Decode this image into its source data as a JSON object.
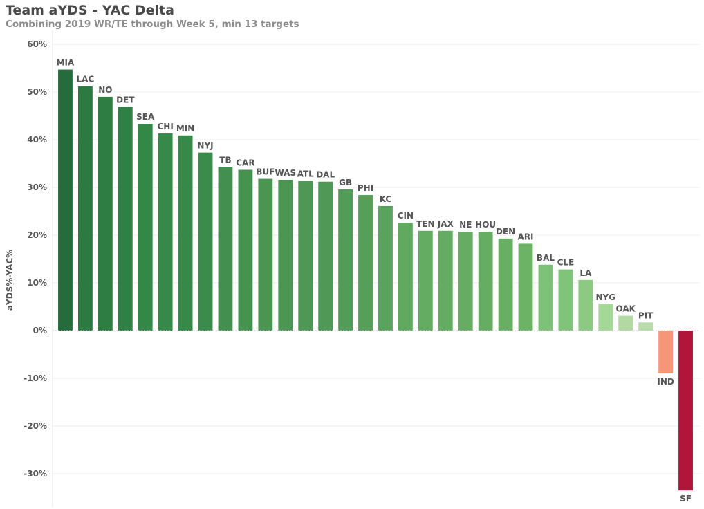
{
  "title": "Team aYDS - YAC Delta",
  "subtitle": "Combining 2019 WR/TE through Week 5, min 13 targets",
  "chart_data": {
    "type": "bar",
    "ylabel": "aYDS%-YAC%",
    "ylim": [
      -37,
      62
    ],
    "yticks": [
      60,
      50,
      40,
      30,
      20,
      10,
      0,
      -10,
      -20,
      -30
    ],
    "ytick_labels": [
      "60%",
      "50%",
      "40%",
      "30%",
      "20%",
      "10%",
      "0%",
      "-10%",
      "-20%",
      "-30%"
    ],
    "grid": true,
    "categories": [
      "MIA",
      "LAC",
      "NO",
      "DET",
      "SEA",
      "CHI",
      "MIN",
      "NYJ",
      "TB",
      "CAR",
      "BUF",
      "WAS",
      "ATL",
      "DAL",
      "GB",
      "PHI",
      "KC",
      "CIN",
      "TEN",
      "JAX",
      "NE",
      "HOU",
      "DEN",
      "ARI",
      "BAL",
      "CLE",
      "LA",
      "NYG",
      "OAK",
      "PIT",
      "IND",
      "SF"
    ],
    "values": [
      54.7,
      51.2,
      49.0,
      46.9,
      43.3,
      41.3,
      40.9,
      37.3,
      34.3,
      33.7,
      31.8,
      31.6,
      31.4,
      31.2,
      29.6,
      28.4,
      26.1,
      22.6,
      20.9,
      20.9,
      20.7,
      20.7,
      19.3,
      18.2,
      13.8,
      12.8,
      10.6,
      5.5,
      3.1,
      1.7,
      -9.0,
      -33.5
    ],
    "colors": [
      "#256b3c",
      "#2b7a40",
      "#2e7e42",
      "#2f8044",
      "#348847",
      "#37894a",
      "#37894a",
      "#3b8c4c",
      "#428f50",
      "#469350",
      "#4a9552",
      "#4c9653",
      "#4e9755",
      "#4f9855",
      "#539c58",
      "#559f59",
      "#59a35c",
      "#60a95f",
      "#64ac62",
      "#64ac62",
      "#66ad63",
      "#66ad63",
      "#68af64",
      "#6cb366",
      "#7ec27a",
      "#80c47b",
      "#8cca82",
      "#a3d896",
      "#b3d9a3",
      "#b9dbab",
      "#f69679",
      "#b1153a"
    ]
  }
}
